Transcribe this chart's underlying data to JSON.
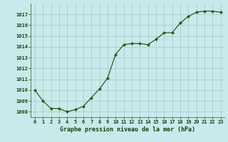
{
  "x": [
    0,
    1,
    2,
    3,
    4,
    5,
    6,
    7,
    8,
    9,
    10,
    11,
    12,
    13,
    14,
    15,
    16,
    17,
    18,
    19,
    20,
    21,
    22,
    23
  ],
  "y": [
    1010.0,
    1009.0,
    1008.3,
    1008.3,
    1008.0,
    1008.2,
    1008.5,
    1009.3,
    1010.1,
    1011.1,
    1013.3,
    1014.2,
    1014.3,
    1014.3,
    1014.2,
    1014.7,
    1015.3,
    1015.3,
    1016.2,
    1016.8,
    1017.2,
    1017.3,
    1017.3,
    1017.2
  ],
  "line_color": "#2d5a1b",
  "marker_color": "#2d5a1b",
  "bg_color": "#c8eaea",
  "grid_color": "#a0c8c8",
  "xlabel": "Graphe pression niveau de la mer (hPa)",
  "xlabel_color": "#1a4010",
  "tick_label_color": "#1a4010",
  "ylim_min": 1007.5,
  "ylim_max": 1018.0,
  "yticks": [
    1008,
    1009,
    1010,
    1011,
    1012,
    1013,
    1014,
    1015,
    1016,
    1017
  ],
  "xticks": [
    0,
    1,
    2,
    3,
    4,
    5,
    6,
    7,
    8,
    9,
    10,
    11,
    12,
    13,
    14,
    15,
    16,
    17,
    18,
    19,
    20,
    21,
    22,
    23
  ]
}
